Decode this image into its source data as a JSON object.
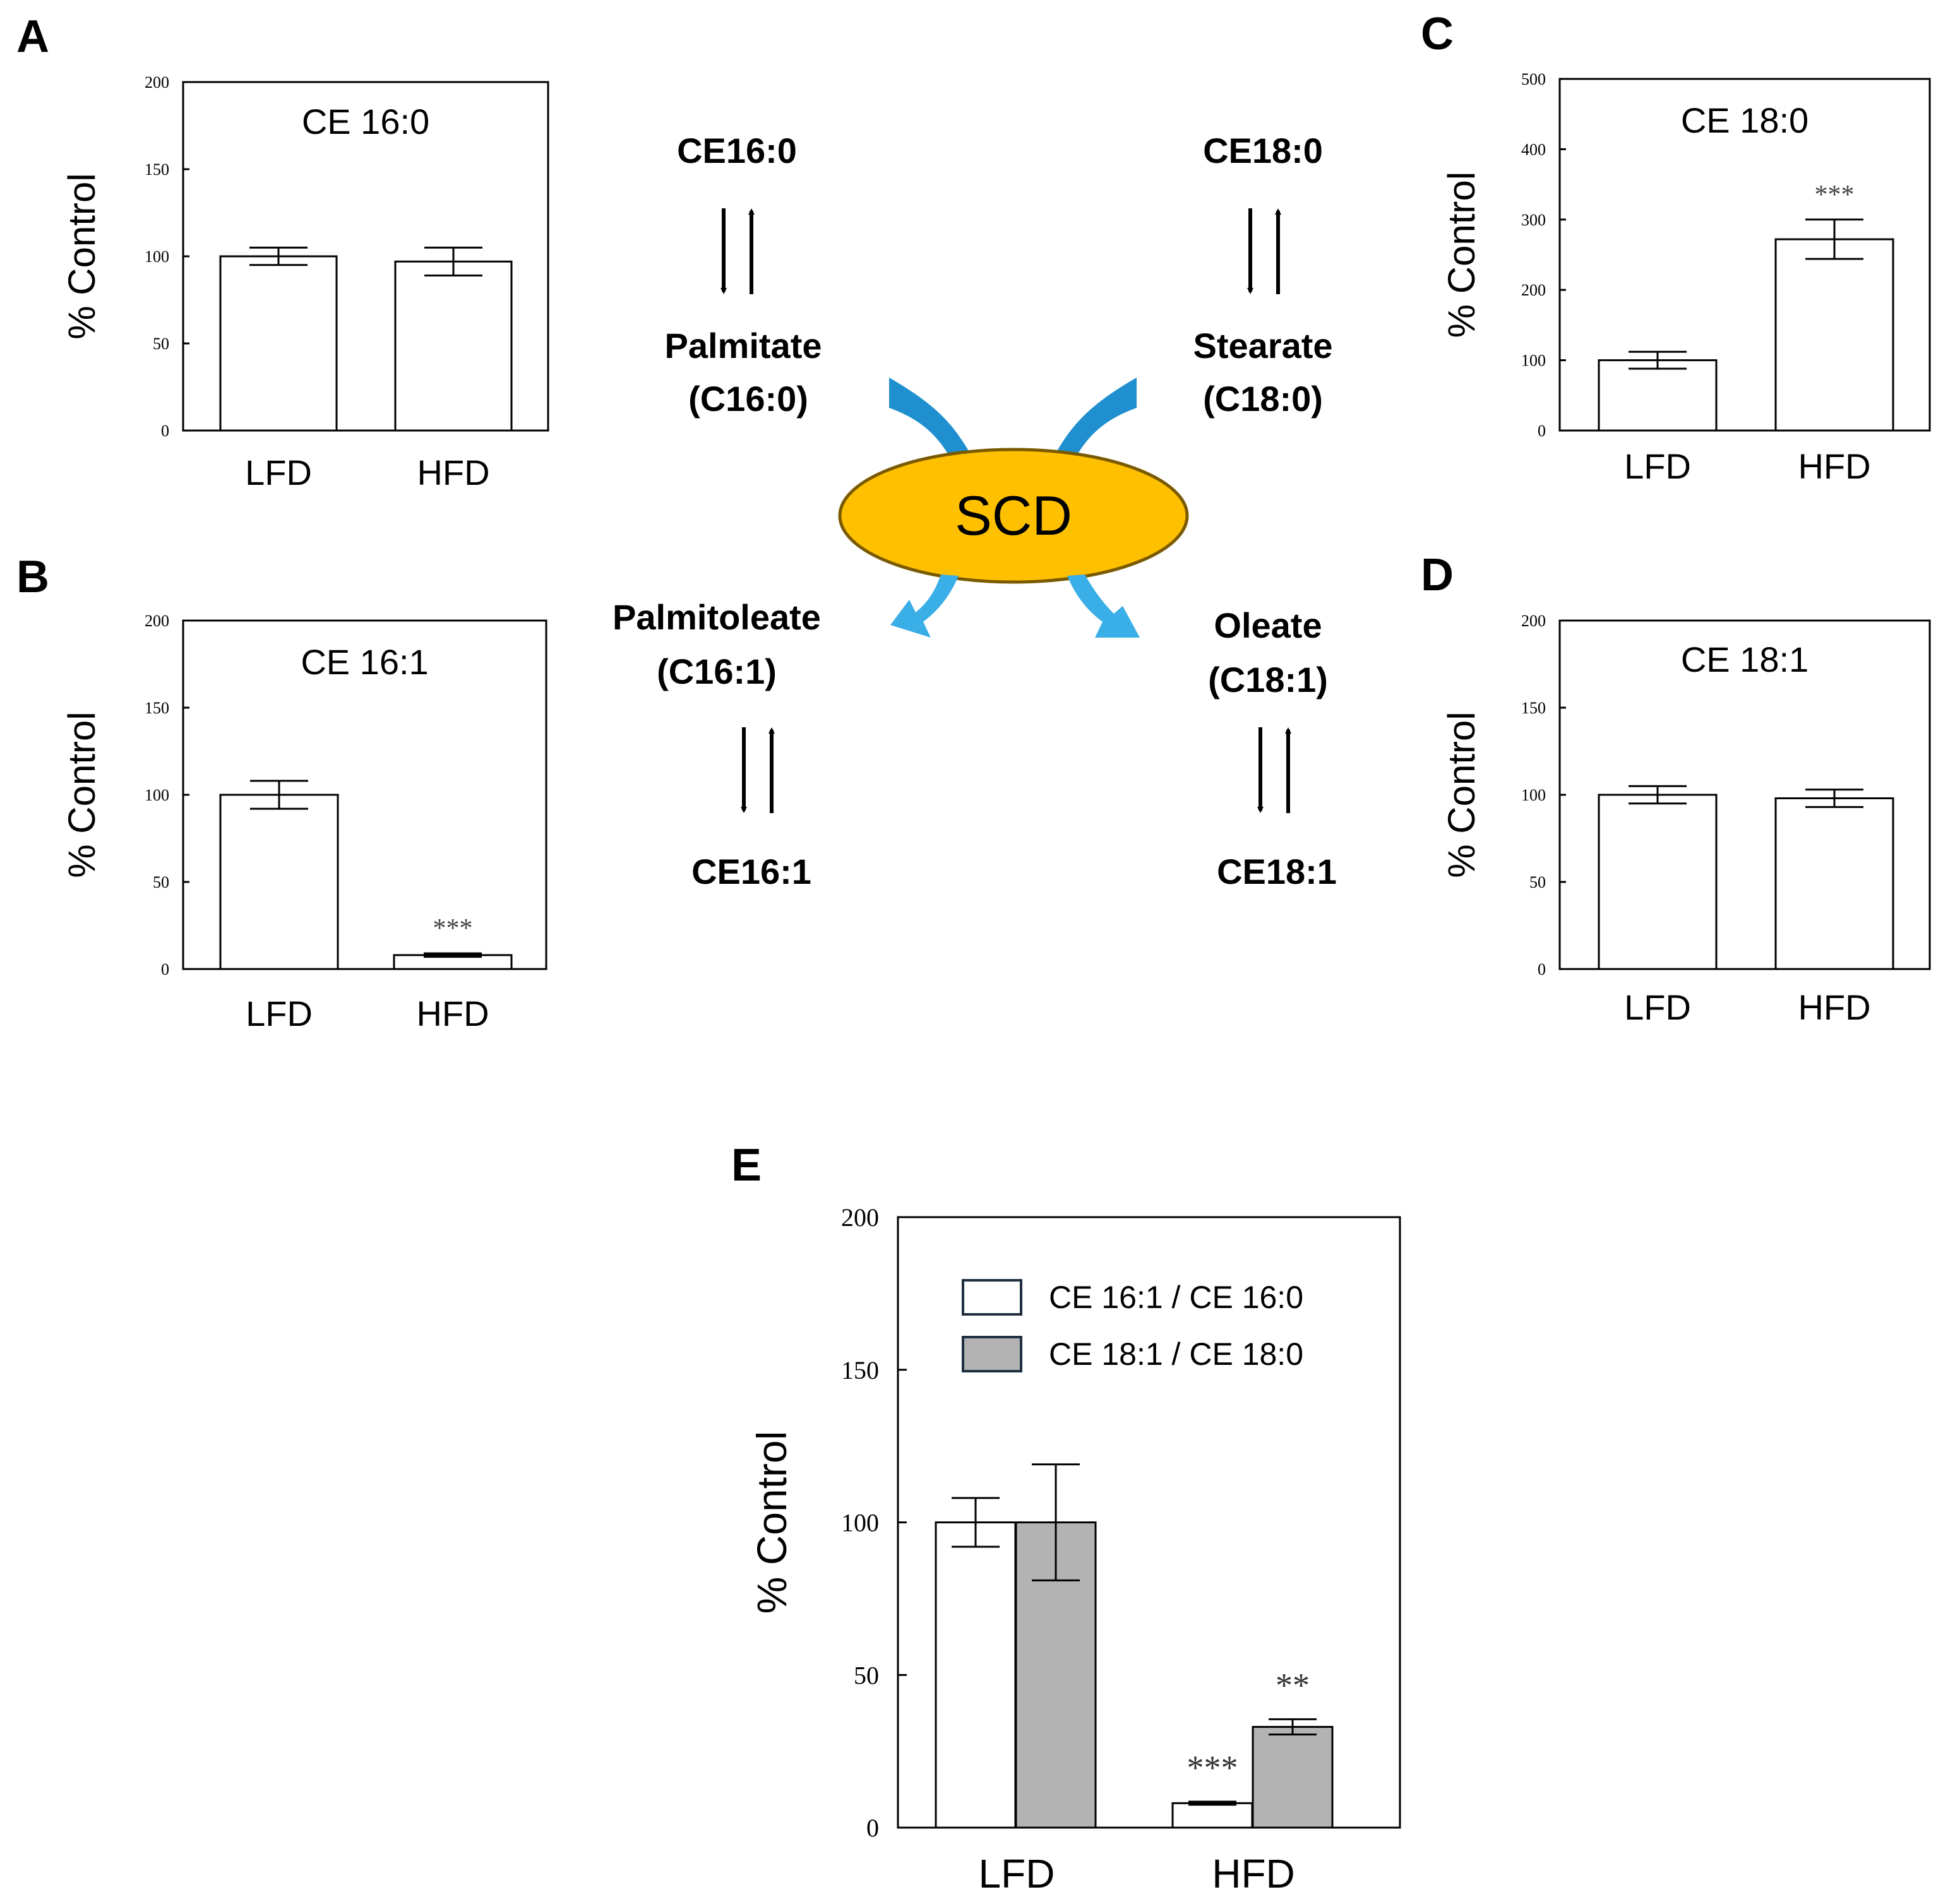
{
  "chart_data": [
    {
      "panel": "A",
      "type": "bar",
      "title": "CE 16:0",
      "ylabel": "% Control",
      "ylim": [
        0,
        200
      ],
      "yticks": [
        0,
        50,
        100,
        150,
        200
      ],
      "categories": [
        "LFD",
        "HFD"
      ],
      "series": [
        {
          "name": "CE 16:0",
          "values": [
            100,
            97
          ],
          "errors": [
            5,
            8
          ],
          "fill": "#ffffff"
        }
      ],
      "significance": [
        "",
        ""
      ]
    },
    {
      "panel": "B",
      "type": "bar",
      "title": "CE 16:1",
      "ylabel": "% Control",
      "ylim": [
        0,
        200
      ],
      "yticks": [
        0,
        50,
        100,
        150,
        200
      ],
      "categories": [
        "LFD",
        "HFD"
      ],
      "series": [
        {
          "name": "CE 16:1",
          "values": [
            100,
            8
          ],
          "errors": [
            8,
            1
          ],
          "fill": "#ffffff"
        }
      ],
      "significance": [
        "",
        "***"
      ]
    },
    {
      "panel": "C",
      "type": "bar",
      "title": "CE 18:0",
      "ylabel": "% Control",
      "ylim": [
        0,
        500
      ],
      "yticks": [
        0,
        100,
        200,
        300,
        400,
        500
      ],
      "categories": [
        "LFD",
        "HFD"
      ],
      "series": [
        {
          "name": "CE 18:0",
          "values": [
            100,
            272
          ],
          "errors": [
            12,
            28
          ],
          "fill": "#ffffff"
        }
      ],
      "significance": [
        "",
        "***"
      ]
    },
    {
      "panel": "D",
      "type": "bar",
      "title": "CE 18:1",
      "ylabel": "% Control",
      "ylim": [
        0,
        200
      ],
      "yticks": [
        0,
        50,
        100,
        150,
        200
      ],
      "categories": [
        "LFD",
        "HFD"
      ],
      "series": [
        {
          "name": "CE 18:1",
          "values": [
            100,
            98
          ],
          "errors": [
            5,
            5
          ],
          "fill": "#ffffff"
        }
      ],
      "significance": [
        "",
        ""
      ]
    },
    {
      "panel": "E",
      "type": "bar",
      "title": "",
      "ylabel": "% Control",
      "ylim": [
        0,
        200
      ],
      "yticks": [
        0,
        50,
        100,
        150,
        200
      ],
      "categories": [
        "LFD",
        "HFD"
      ],
      "series": [
        {
          "name": "CE 16:1 / CE 16:0",
          "values": [
            100,
            8
          ],
          "errors": [
            8,
            0.5
          ],
          "fill": "#ffffff"
        },
        {
          "name": "CE 18:1 / CE 18:0",
          "values": [
            100,
            33
          ],
          "errors": [
            19,
            2.5
          ],
          "fill": "#b3b3b3"
        }
      ],
      "significance": [
        [
          "",
          "***"
        ],
        [
          "",
          "**"
        ]
      ],
      "legend_position": "top"
    }
  ],
  "pathway": {
    "enzyme": "SCD",
    "labels": {
      "ce160": "CE16:0",
      "ce180": "CE18:0",
      "palmitate_name": "Palmitate",
      "palmitate_formula": "(C16:0)",
      "stearate_name": "Stearate",
      "stearate_formula": "(C18:0)",
      "palmitoleate_name": "Palmitoleate",
      "palmitoleate_formula": "(C16:1)",
      "oleate_name": "Oleate",
      "oleate_formula": "(C18:1)",
      "ce161": "CE16:1",
      "ce181": "CE18:1"
    },
    "colors": {
      "enzyme_fill": "#FFC000",
      "arrow_in": "#1f8fcf",
      "arrow_out": "#3aaee6"
    }
  }
}
